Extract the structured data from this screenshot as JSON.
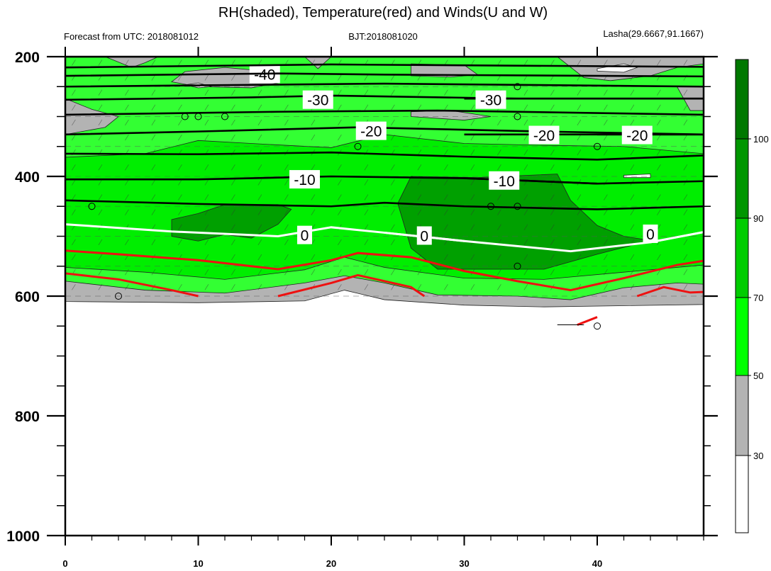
{
  "chart_data": {
    "type": "heatmap",
    "title": "RH(shaded), Temperature(red) and Winds(U and W)",
    "subtitle_left": "Forecast from UTC: 2018081012",
    "subtitle_center": "BJT:2018081020",
    "subtitle_right": "Lasha(29.6667,91.1667)",
    "x": {
      "range": [
        0,
        48
      ],
      "ticks": [
        0,
        10,
        20,
        30,
        40
      ],
      "tick_labels": [
        "0",
        "10",
        "20",
        "30",
        "40"
      ],
      "minor_ticks": [
        2,
        4,
        6,
        8,
        12,
        14,
        16,
        18,
        22,
        24,
        26,
        28,
        32,
        34,
        36,
        38,
        42,
        44,
        46,
        48
      ]
    },
    "y": {
      "range": [
        1000,
        200
      ],
      "ticks": [
        200,
        400,
        600,
        800,
        1000
      ],
      "tick_labels": [
        "200",
        "400",
        "600",
        "800",
        "1000"
      ],
      "minor_ticks": [
        250,
        300,
        350,
        450,
        500,
        550,
        650,
        700,
        750,
        850,
        900,
        950
      ]
    },
    "colorbar": {
      "levels": [
        30,
        50,
        70,
        90,
        100
      ],
      "labels": [
        "30",
        "50",
        "70",
        "90",
        "100"
      ],
      "colors": [
        "#ffffff",
        "#b3b3b3",
        "#00ff00",
        "#00e600",
        "#00cc00",
        "#00a000",
        "#008000"
      ]
    },
    "rh_bands": [
      {
        "level": "gray",
        "color": "#b3b3b3",
        "top": [
          [
            0,
            200
          ],
          [
            48,
            200
          ]
        ],
        "bottom": [
          [
            0,
            609
          ],
          [
            10,
            611
          ],
          [
            18,
            608
          ],
          [
            21,
            590
          ],
          [
            24,
            606
          ],
          [
            30,
            615
          ],
          [
            36,
            618
          ],
          [
            42,
            616
          ],
          [
            48,
            614
          ]
        ]
      },
      {
        "level": "50-70",
        "color": "#33ff33",
        "top": [
          [
            0,
            200
          ],
          [
            48,
            200
          ]
        ],
        "bottom": [
          [
            0,
            575
          ],
          [
            6,
            590
          ],
          [
            12,
            595
          ],
          [
            18,
            578
          ],
          [
            21,
            566
          ],
          [
            24,
            578
          ],
          [
            28,
            598
          ],
          [
            34,
            600
          ],
          [
            38,
            606
          ],
          [
            42,
            586
          ],
          [
            46,
            578
          ],
          [
            48,
            580
          ]
        ]
      },
      {
        "level": "70-90",
        "color": "#00ee00",
        "top": [
          [
            0,
            368
          ],
          [
            6,
            362
          ],
          [
            10,
            340
          ],
          [
            14,
            345
          ],
          [
            20,
            352
          ],
          [
            24,
            330
          ],
          [
            30,
            345
          ],
          [
            36,
            348
          ],
          [
            42,
            350
          ],
          [
            48,
            362
          ]
        ],
        "bottom": [
          [
            0,
            552
          ],
          [
            6,
            560
          ],
          [
            12,
            572
          ],
          [
            18,
            556
          ],
          [
            21,
            535
          ],
          [
            24,
            552
          ],
          [
            30,
            570
          ],
          [
            36,
            572
          ],
          [
            42,
            560
          ],
          [
            48,
            548
          ]
        ]
      },
      {
        "level": "90-100",
        "color": "#00a000",
        "top": [
          [
            8,
            472
          ],
          [
            10,
            462
          ],
          [
            12,
            447
          ],
          [
            16,
            447
          ],
          [
            17,
            455
          ],
          [
            16,
            480
          ],
          [
            14,
            503
          ],
          [
            12,
            497
          ],
          [
            10,
            508
          ],
          [
            8,
            500
          ]
        ],
        "bottom": [
          [
            25,
            445
          ],
          [
            26,
            400
          ],
          [
            31,
            402
          ],
          [
            37,
            396
          ],
          [
            38,
            440
          ],
          [
            40,
            482
          ],
          [
            42,
            500
          ],
          [
            44,
            507
          ],
          [
            40,
            530
          ],
          [
            36,
            555
          ],
          [
            28,
            555
          ],
          [
            26,
            520
          ]
        ]
      }
    ],
    "gray_patches": [
      [
        [
          3,
          200
        ],
        [
          5,
          218
        ],
        [
          6,
          210
        ],
        [
          7,
          200
        ]
      ],
      [
        [
          8,
          242
        ],
        [
          9,
          225
        ],
        [
          12,
          218
        ],
        [
          15,
          224
        ],
        [
          16,
          244
        ],
        [
          14,
          252
        ],
        [
          10,
          250
        ]
      ],
      [
        [
          18,
          200
        ],
        [
          19,
          220
        ],
        [
          20,
          200
        ]
      ],
      [
        [
          26,
          212
        ],
        [
          26,
          232
        ],
        [
          29,
          234
        ],
        [
          31,
          230
        ],
        [
          30,
          214
        ]
      ],
      [
        [
          26,
          292
        ],
        [
          29,
          290
        ],
        [
          32,
          300
        ],
        [
          30,
          306
        ],
        [
          26,
          300
        ]
      ],
      [
        [
          37,
          200
        ],
        [
          39,
          235
        ],
        [
          41,
          240
        ],
        [
          44,
          232
        ],
        [
          46,
          218
        ],
        [
          48,
          212
        ],
        [
          48,
          200
        ]
      ],
      [
        [
          0,
          270
        ],
        [
          2,
          288
        ],
        [
          4,
          300
        ],
        [
          3,
          318
        ],
        [
          0,
          330
        ]
      ],
      [
        [
          46,
          250
        ],
        [
          48,
          250
        ],
        [
          48,
          290
        ],
        [
          47,
          290
        ]
      ]
    ],
    "white_patches": [
      [
        [
          40,
          220
        ],
        [
          42,
          212
        ],
        [
          43,
          218
        ],
        [
          42,
          226
        ],
        [
          40,
          224
        ]
      ],
      [
        [
          9,
          247
        ],
        [
          10,
          244
        ],
        [
          11,
          250
        ],
        [
          10,
          252
        ]
      ],
      [
        [
          42,
          398
        ],
        [
          44,
          396
        ],
        [
          44,
          402
        ],
        [
          42,
          402
        ]
      ]
    ],
    "temperature_isotherms": [
      {
        "label": "-40",
        "color": "#000000",
        "points": [
          [
            0,
            200
          ],
          [
            48,
            200
          ]
        ],
        "label_at": [
          15,
          230
        ]
      },
      {
        "label": "",
        "color": "#000000",
        "points": [
          [
            0,
            218
          ],
          [
            20,
            213
          ],
          [
            48,
            217
          ]
        ]
      },
      {
        "label": "",
        "color": "#000000",
        "points": [
          [
            0,
            232
          ],
          [
            16,
            228
          ],
          [
            24,
            230
          ],
          [
            48,
            233
          ]
        ]
      },
      {
        "label": "",
        "color": "#000000",
        "points": [
          [
            0,
            250
          ],
          [
            24,
            245
          ],
          [
            48,
            250
          ]
        ]
      },
      {
        "label": "-30",
        "color": "#000000",
        "points": [
          [
            0,
            272
          ],
          [
            14,
            268
          ],
          [
            20,
            265
          ],
          [
            34,
            270
          ],
          [
            48,
            270
          ]
        ],
        "label_at": [
          19,
          273
        ]
      },
      {
        "label": "",
        "color": "#000000",
        "points": [
          [
            0,
            297
          ],
          [
            16,
            292
          ],
          [
            28,
            290
          ],
          [
            48,
            297
          ]
        ]
      },
      {
        "label": "-30",
        "color": "#000000",
        "points": [
          [
            30,
            270
          ],
          [
            48,
            270
          ]
        ],
        "label_at": [
          32,
          273
        ]
      },
      {
        "label": "-20",
        "color": "#000000",
        "points": [
          [
            0,
            330
          ],
          [
            10,
            325
          ],
          [
            22,
            318
          ],
          [
            36,
            325
          ],
          [
            48,
            330
          ]
        ],
        "label_at": [
          23,
          325
        ]
      },
      {
        "label": "-20",
        "color": "#000000",
        "points": [
          [
            30,
            330
          ],
          [
            48,
            330
          ]
        ],
        "label_at": [
          36,
          332
        ]
      },
      {
        "label": "-20",
        "color": "#000000",
        "points": [
          [
            40,
            330
          ],
          [
            48,
            330
          ]
        ],
        "label_at": [
          43,
          332
        ]
      },
      {
        "label": "",
        "color": "#000000",
        "points": [
          [
            0,
            362
          ],
          [
            10,
            363
          ],
          [
            20,
            360
          ],
          [
            30,
            367
          ],
          [
            40,
            372
          ],
          [
            48,
            365
          ]
        ]
      },
      {
        "label": "-10",
        "color": "#000000",
        "points": [
          [
            0,
            405
          ],
          [
            10,
            405
          ],
          [
            20,
            400
          ],
          [
            30,
            403
          ],
          [
            40,
            412
          ],
          [
            48,
            408
          ]
        ],
        "label_at": [
          18,
          406
        ]
      },
      {
        "label": "-10",
        "color": "#000000",
        "points": [
          [
            30,
            403
          ],
          [
            40,
            412
          ]
        ],
        "label_at": [
          33,
          408
        ]
      },
      {
        "label": "",
        "color": "#000000",
        "points": [
          [
            0,
            440
          ],
          [
            10,
            446
          ],
          [
            20,
            450
          ],
          [
            24,
            444
          ],
          [
            30,
            450
          ],
          [
            40,
            455
          ],
          [
            48,
            450
          ]
        ]
      },
      {
        "label": "0",
        "color": "#ffffff",
        "points": [
          [
            0,
            480
          ],
          [
            8,
            492
          ],
          [
            16,
            500
          ],
          [
            20,
            485
          ],
          [
            24,
            494
          ],
          [
            30,
            508
          ],
          [
            38,
            525
          ],
          [
            44,
            510
          ],
          [
            48,
            493
          ]
        ],
        "label_at": [
          18,
          499
        ]
      },
      {
        "label": "0",
        "color": "#ffffff",
        "points": [
          [
            24,
            494
          ],
          [
            30,
            508
          ]
        ],
        "label_at": [
          27,
          500
        ]
      },
      {
        "label": "0",
        "color": "#ffffff",
        "points": [
          [
            44,
            510
          ],
          [
            48,
            493
          ]
        ],
        "label_at": [
          44,
          497
        ]
      },
      {
        "label": "",
        "color": "#ee1111",
        "points": [
          [
            0,
            524
          ],
          [
            4,
            530
          ],
          [
            10,
            540
          ],
          [
            16,
            555
          ],
          [
            20,
            540
          ],
          [
            22,
            528
          ],
          [
            26,
            535
          ],
          [
            30,
            558
          ],
          [
            34,
            575
          ],
          [
            38,
            590
          ],
          [
            42,
            570
          ],
          [
            46,
            548
          ],
          [
            48,
            541
          ]
        ]
      },
      {
        "label": "",
        "color": "#ee1111",
        "points": [
          [
            0,
            562
          ],
          [
            4,
            572
          ],
          [
            8,
            590
          ],
          [
            10,
            600
          ]
        ]
      },
      {
        "label": "",
        "color": "#ee1111",
        "points": [
          [
            16,
            600
          ],
          [
            20,
            578
          ],
          [
            22,
            565
          ],
          [
            26,
            585
          ],
          [
            27,
            600
          ]
        ]
      },
      {
        "label": "",
        "color": "#ee1111",
        "points": [
          [
            43,
            600
          ],
          [
            45,
            585
          ],
          [
            47,
            594
          ],
          [
            48,
            593
          ]
        ]
      },
      {
        "label": "",
        "color": "#ee1111",
        "points": [
          [
            38.5,
            648
          ],
          [
            40,
            635
          ]
        ]
      }
    ],
    "surface_station_barb": {
      "x_from": 37,
      "x_to": 39,
      "p": 648
    },
    "calm_markers": [
      [
        2,
        450
      ],
      [
        4,
        600
      ],
      [
        10,
        300
      ],
      [
        12,
        300
      ],
      [
        9,
        300
      ],
      [
        22,
        350
      ],
      [
        32,
        450
      ],
      [
        34,
        450
      ],
      [
        34,
        250
      ],
      [
        34,
        300
      ],
      [
        40,
        350
      ],
      [
        34,
        550
      ],
      [
        40,
        650
      ]
    ],
    "grid": "dashed",
    "legend": "colorbar-right"
  }
}
